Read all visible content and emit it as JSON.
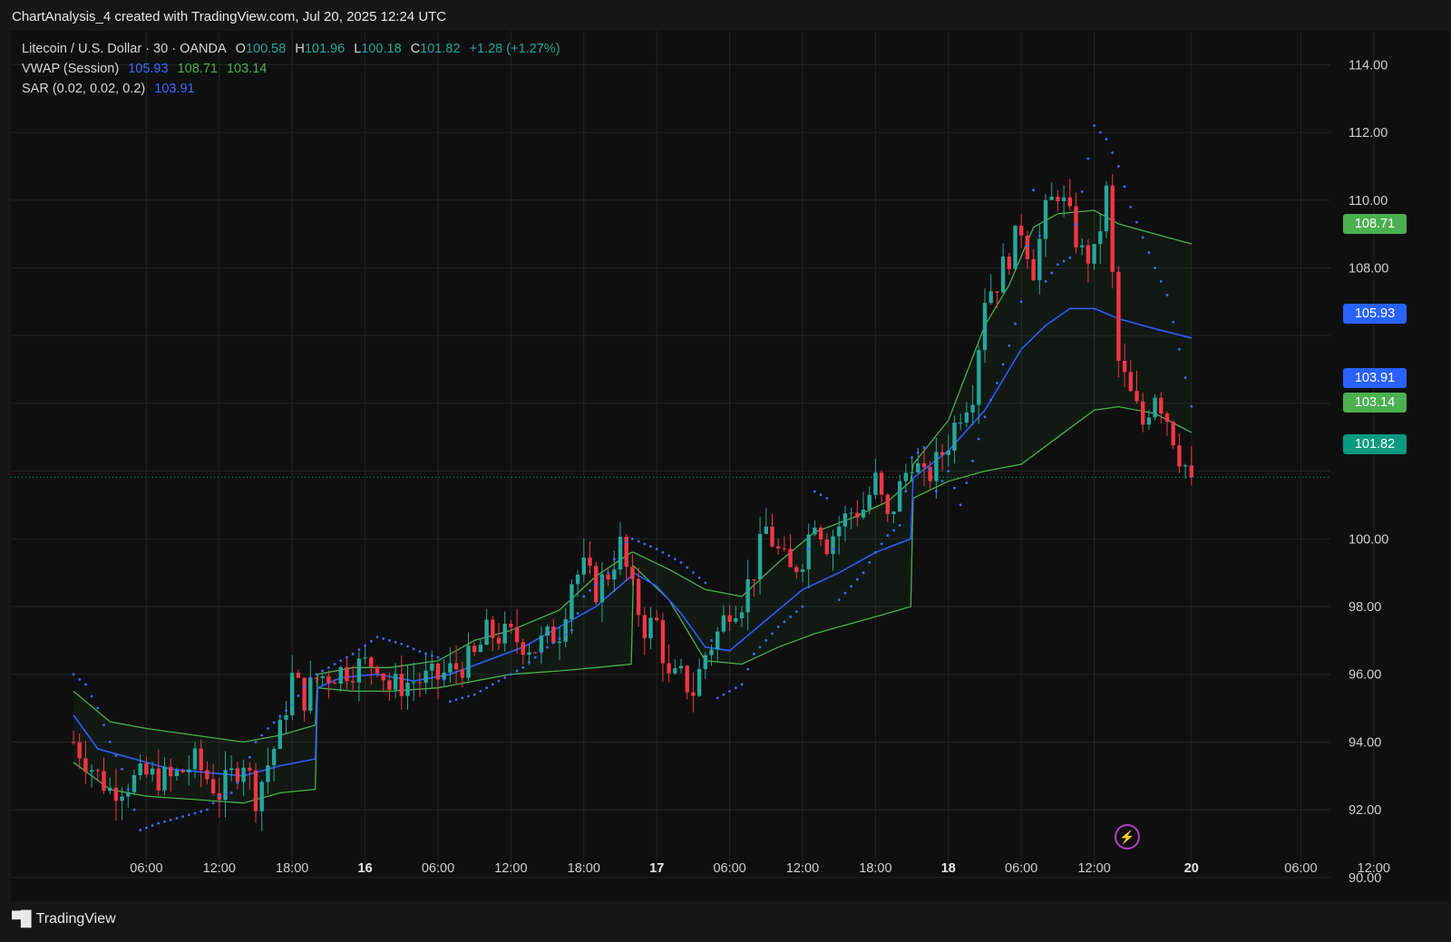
{
  "header": {
    "caption": "ChartAnalysis_4 created with TradingView.com, Jul 20, 2025 12:24 UTC"
  },
  "legend": {
    "symbol": "Litecoin / U.S. Dollar · 30 · OANDA",
    "o_label": "O",
    "o_value": "100.58",
    "h_label": "H",
    "h_value": "101.96",
    "l_label": "L",
    "l_value": "100.18",
    "c_label": "C",
    "c_value": "101.82",
    "change": "+1.28 (+1.27%)",
    "vwap_label": "VWAP (Session)",
    "vwap_values": [
      "105.93",
      "108.71",
      "103.14"
    ],
    "sar_label": "SAR (0.02, 0.02, 0.2)",
    "sar_value": "103.91"
  },
  "price_tags": [
    {
      "value": "108.71",
      "color": "#4caf50"
    },
    {
      "value": "105.93",
      "color": "#2962ff"
    },
    {
      "value": "103.91",
      "color": "#2962ff"
    },
    {
      "value": "103.14",
      "color": "#4caf50"
    },
    {
      "value": "101.82",
      "color": "#089981"
    }
  ],
  "colors": {
    "up": "#26a69a",
    "down": "#f23645",
    "vwap": "#2f5cff",
    "band": "#4caf50",
    "sar": "#3d6bff"
  },
  "footer": {
    "brand": "TradingView",
    "icon": "tradingview-logo-icon"
  },
  "chart_data": {
    "type": "candlestick",
    "ylim": [
      89.3,
      115.0
    ],
    "yticks": [
      "114.00",
      "112.00",
      "110.00",
      "108.00",
      "100.00",
      "98.00",
      "96.00",
      "94.00",
      "92.00",
      "90.00"
    ],
    "xticks": [
      {
        "label": "06:00",
        "bold": false,
        "t": 6
      },
      {
        "label": "12:00",
        "bold": false,
        "t": 12
      },
      {
        "label": "18:00",
        "bold": false,
        "t": 18
      },
      {
        "label": "16",
        "bold": true,
        "t": 24
      },
      {
        "label": "06:00",
        "bold": false,
        "t": 30
      },
      {
        "label": "12:00",
        "bold": false,
        "t": 36
      },
      {
        "label": "18:00",
        "bold": false,
        "t": 42
      },
      {
        "label": "17",
        "bold": true,
        "t": 48
      },
      {
        "label": "06:00",
        "bold": false,
        "t": 54
      },
      {
        "label": "12:00",
        "bold": false,
        "t": 60
      },
      {
        "label": "18:00",
        "bold": false,
        "t": 66
      },
      {
        "label": "18",
        "bold": true,
        "t": 72
      },
      {
        "label": "06:00",
        "bold": false,
        "t": 78
      },
      {
        "label": "12:00",
        "bold": false,
        "t": 84
      },
      {
        "label": "20",
        "bold": true,
        "t": 92
      },
      {
        "label": "06:00",
        "bold": false,
        "t": 101
      },
      {
        "label": "12:00",
        "bold": false,
        "t": 107
      }
    ],
    "last_price": 101.82,
    "ohlc_anchors": [
      [
        0,
        94.0
      ],
      [
        2,
        93.0
      ],
      [
        3,
        92.6
      ],
      [
        6,
        93.0
      ],
      [
        8,
        92.9
      ],
      [
        10,
        93.4
      ],
      [
        12,
        92.5
      ],
      [
        14,
        93.5
      ],
      [
        15,
        92.4
      ],
      [
        17,
        94.3
      ],
      [
        18,
        95.9
      ],
      [
        19,
        95.3
      ],
      [
        20,
        95.9
      ],
      [
        21,
        96.0
      ],
      [
        23,
        96.2
      ],
      [
        25,
        96.4
      ],
      [
        26,
        95.6
      ],
      [
        28,
        95.8
      ],
      [
        30,
        95.9
      ],
      [
        32,
        96.3
      ],
      [
        33,
        96.5
      ],
      [
        34,
        97.2
      ],
      [
        36,
        97.1
      ],
      [
        38,
        96.8
      ],
      [
        40,
        97.3
      ],
      [
        41,
        98.8
      ],
      [
        42,
        99.1
      ],
      [
        43,
        98.5
      ],
      [
        44,
        99.0
      ],
      [
        45,
        99.8
      ],
      [
        46,
        98.4
      ],
      [
        47,
        97.4
      ],
      [
        48,
        97.5
      ],
      [
        49,
        95.8
      ],
      [
        50,
        95.9
      ],
      [
        51,
        95.5
      ],
      [
        52,
        96.6
      ],
      [
        53,
        97.2
      ],
      [
        54,
        98.0
      ],
      [
        55,
        98.2
      ],
      [
        56,
        99.1
      ],
      [
        57,
        100.3
      ],
      [
        58,
        99.6
      ],
      [
        59,
        99.0
      ],
      [
        60,
        99.5
      ],
      [
        61,
        100.7
      ],
      [
        62,
        99.9
      ],
      [
        63,
        100.4
      ],
      [
        64,
        100.8
      ],
      [
        65,
        100.9
      ],
      [
        66,
        101.7
      ],
      [
        67,
        100.5
      ],
      [
        68,
        101.5
      ],
      [
        69,
        102.4
      ],
      [
        70,
        101.7
      ],
      [
        71,
        102.2
      ],
      [
        72,
        102.9
      ],
      [
        73,
        103.8
      ],
      [
        74,
        104.4
      ],
      [
        75,
        107.2
      ],
      [
        76,
        107.6
      ],
      [
        77,
        108.4
      ],
      [
        78,
        109.2
      ],
      [
        79,
        108.0
      ],
      [
        80,
        109.6
      ],
      [
        81,
        110.3
      ],
      [
        82,
        109.4
      ],
      [
        83,
        108.4
      ],
      [
        84,
        108.3
      ],
      [
        85,
        110.2
      ],
      [
        86,
        105.2
      ],
      [
        87,
        104.2
      ],
      [
        88,
        103.4
      ],
      [
        89,
        104.4
      ],
      [
        90,
        103.6
      ],
      [
        91,
        102.5
      ],
      [
        92,
        101.82
      ]
    ],
    "vwap": [
      [
        0,
        94.8
      ],
      [
        2,
        93.8
      ],
      [
        5,
        93.5
      ],
      [
        8,
        93.2
      ],
      [
        11,
        93.1
      ],
      [
        14,
        93.0
      ],
      [
        17,
        93.3
      ],
      [
        19.9,
        93.5
      ],
      [
        20.1,
        95.6
      ],
      [
        22,
        95.9
      ],
      [
        25,
        96.0
      ],
      [
        28,
        95.8
      ],
      [
        31,
        96.0
      ],
      [
        34,
        96.4
      ],
      [
        37,
        96.8
      ],
      [
        40,
        97.4
      ],
      [
        43,
        98.0
      ],
      [
        45.9,
        98.9
      ],
      [
        46.1,
        99.0
      ],
      [
        48,
        98.6
      ],
      [
        50,
        97.8
      ],
      [
        52,
        96.8
      ],
      [
        54,
        96.7
      ],
      [
        57,
        97.6
      ],
      [
        60,
        98.5
      ],
      [
        63,
        99.0
      ],
      [
        66,
        99.6
      ],
      [
        68.9,
        100.0
      ],
      [
        69.1,
        101.8
      ],
      [
        72,
        102.6
      ],
      [
        75,
        103.8
      ],
      [
        78,
        105.6
      ],
      [
        80,
        106.3
      ],
      [
        82,
        106.8
      ],
      [
        84,
        106.8
      ],
      [
        86,
        106.5
      ],
      [
        89,
        106.2
      ],
      [
        92,
        105.93
      ]
    ],
    "vwap_upper": [
      [
        0,
        95.5
      ],
      [
        3,
        94.6
      ],
      [
        6,
        94.4
      ],
      [
        10,
        94.2
      ],
      [
        14,
        94.0
      ],
      [
        17,
        94.2
      ],
      [
        19.9,
        94.5
      ],
      [
        20.1,
        96.0
      ],
      [
        23,
        96.2
      ],
      [
        26,
        96.2
      ],
      [
        30,
        96.4
      ],
      [
        33,
        97.0
      ],
      [
        36,
        97.3
      ],
      [
        40,
        97.9
      ],
      [
        43,
        98.9
      ],
      [
        45.9,
        99.6
      ],
      [
        46.1,
        99.6
      ],
      [
        49,
        99.1
      ],
      [
        52,
        98.5
      ],
      [
        55,
        98.3
      ],
      [
        58,
        99.3
      ],
      [
        61,
        100.2
      ],
      [
        64,
        100.6
      ],
      [
        67,
        101.1
      ],
      [
        68.9,
        101.7
      ],
      [
        69.1,
        102.2
      ],
      [
        72,
        103.5
      ],
      [
        75,
        106.3
      ],
      [
        77,
        107.5
      ],
      [
        79,
        109.2
      ],
      [
        81,
        109.6
      ],
      [
        84,
        109.7
      ],
      [
        86,
        109.3
      ],
      [
        88,
        109.1
      ],
      [
        92,
        108.71
      ]
    ],
    "vwap_lower": [
      [
        0,
        93.4
      ],
      [
        3,
        92.6
      ],
      [
        6,
        92.4
      ],
      [
        10,
        92.3
      ],
      [
        14,
        92.2
      ],
      [
        17,
        92.5
      ],
      [
        19.9,
        92.6
      ],
      [
        20.1,
        95.6
      ],
      [
        23,
        95.5
      ],
      [
        26,
        95.5
      ],
      [
        30,
        95.6
      ],
      [
        33,
        95.8
      ],
      [
        36,
        96.0
      ],
      [
        40,
        96.1
      ],
      [
        43,
        96.2
      ],
      [
        45.9,
        96.3
      ],
      [
        46.1,
        99.2
      ],
      [
        49,
        98.2
      ],
      [
        52,
        96.4
      ],
      [
        55,
        96.3
      ],
      [
        58,
        96.8
      ],
      [
        61,
        97.2
      ],
      [
        64,
        97.5
      ],
      [
        67,
        97.8
      ],
      [
        68.9,
        98.0
      ],
      [
        69.1,
        101.2
      ],
      [
        72,
        101.7
      ],
      [
        75,
        102.0
      ],
      [
        78,
        102.2
      ],
      [
        81,
        103.0
      ],
      [
        84,
        103.8
      ],
      [
        86,
        103.9
      ],
      [
        89,
        103.7
      ],
      [
        92,
        103.14
      ]
    ],
    "sar": [
      [
        0,
        96.0
      ],
      [
        1,
        95.7
      ],
      [
        2,
        95.0
      ],
      [
        3,
        94.0
      ],
      [
        4,
        93.2
      ],
      [
        5.5,
        91.4
      ],
      [
        7,
        91.6
      ],
      [
        9,
        91.8
      ],
      [
        11,
        92.0
      ],
      [
        12,
        92.4
      ],
      [
        13,
        92.5
      ],
      [
        14,
        93.1
      ],
      [
        15,
        94.0
      ],
      [
        16,
        94.4
      ],
      [
        18,
        95.1
      ],
      [
        19.5,
        95.9
      ],
      [
        21,
        96.2
      ],
      [
        22,
        96.4
      ],
      [
        23,
        96.6
      ],
      [
        25,
        97.1
      ],
      [
        27,
        96.9
      ],
      [
        29,
        96.6
      ],
      [
        30,
        96.5
      ],
      [
        31,
        95.2
      ],
      [
        33,
        95.4
      ],
      [
        35,
        95.8
      ],
      [
        37,
        96.2
      ],
      [
        39,
        96.8
      ],
      [
        41,
        97.3
      ],
      [
        42,
        98.3
      ],
      [
        44,
        99.0
      ],
      [
        45,
        99.8
      ],
      [
        46,
        100.0
      ],
      [
        48,
        99.7
      ],
      [
        50,
        99.3
      ],
      [
        52,
        98.7
      ],
      [
        53,
        95.3
      ],
      [
        55,
        95.7
      ],
      [
        56,
        96.6
      ],
      [
        58,
        97.4
      ],
      [
        60,
        98.0
      ],
      [
        61,
        101.4
      ],
      [
        62,
        101.2
      ],
      [
        63,
        98.2
      ],
      [
        65,
        99.0
      ],
      [
        66,
        99.6
      ],
      [
        67,
        100.1
      ],
      [
        68,
        100.4
      ],
      [
        69,
        102.4
      ],
      [
        70,
        102.7
      ],
      [
        71,
        101.4
      ],
      [
        72,
        102.0
      ],
      [
        73,
        101.0
      ],
      [
        74,
        102.3
      ],
      [
        75,
        103.6
      ],
      [
        76,
        104.6
      ],
      [
        77,
        105.7
      ],
      [
        78,
        107.0
      ],
      [
        79,
        110.3
      ],
      [
        80,
        107.6
      ],
      [
        81,
        108.1
      ],
      [
        82,
        108.3
      ],
      [
        84,
        112.2
      ],
      [
        85,
        111.8
      ],
      [
        86,
        111.0
      ],
      [
        87,
        109.8
      ],
      [
        88,
        108.9
      ],
      [
        89,
        108.0
      ],
      [
        90,
        107.2
      ],
      [
        91,
        105.6
      ],
      [
        92,
        103.91
      ]
    ]
  }
}
